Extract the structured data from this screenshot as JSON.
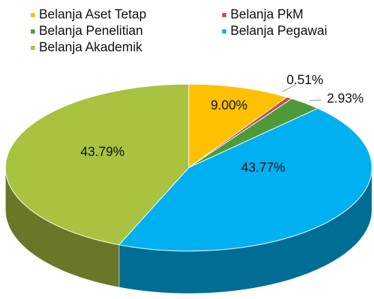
{
  "chart_data": {
    "type": "pie",
    "categories": [
      "Belanja Aset Tetap",
      "Belanja PkM",
      "Belanja Penelitian",
      "Belanja Pegawai",
      "Belanja Akademik"
    ],
    "values": [
      9.0,
      0.51,
      2.93,
      43.77,
      43.79
    ],
    "value_labels": [
      "9.00%",
      "0.51%",
      "2.93%",
      "43.77%",
      "43.79%"
    ],
    "colors": [
      "#ffc000",
      "#c0504d",
      "#4e9a3a",
      "#00b0f0",
      "#a9c23f"
    ],
    "legend": "top"
  }
}
